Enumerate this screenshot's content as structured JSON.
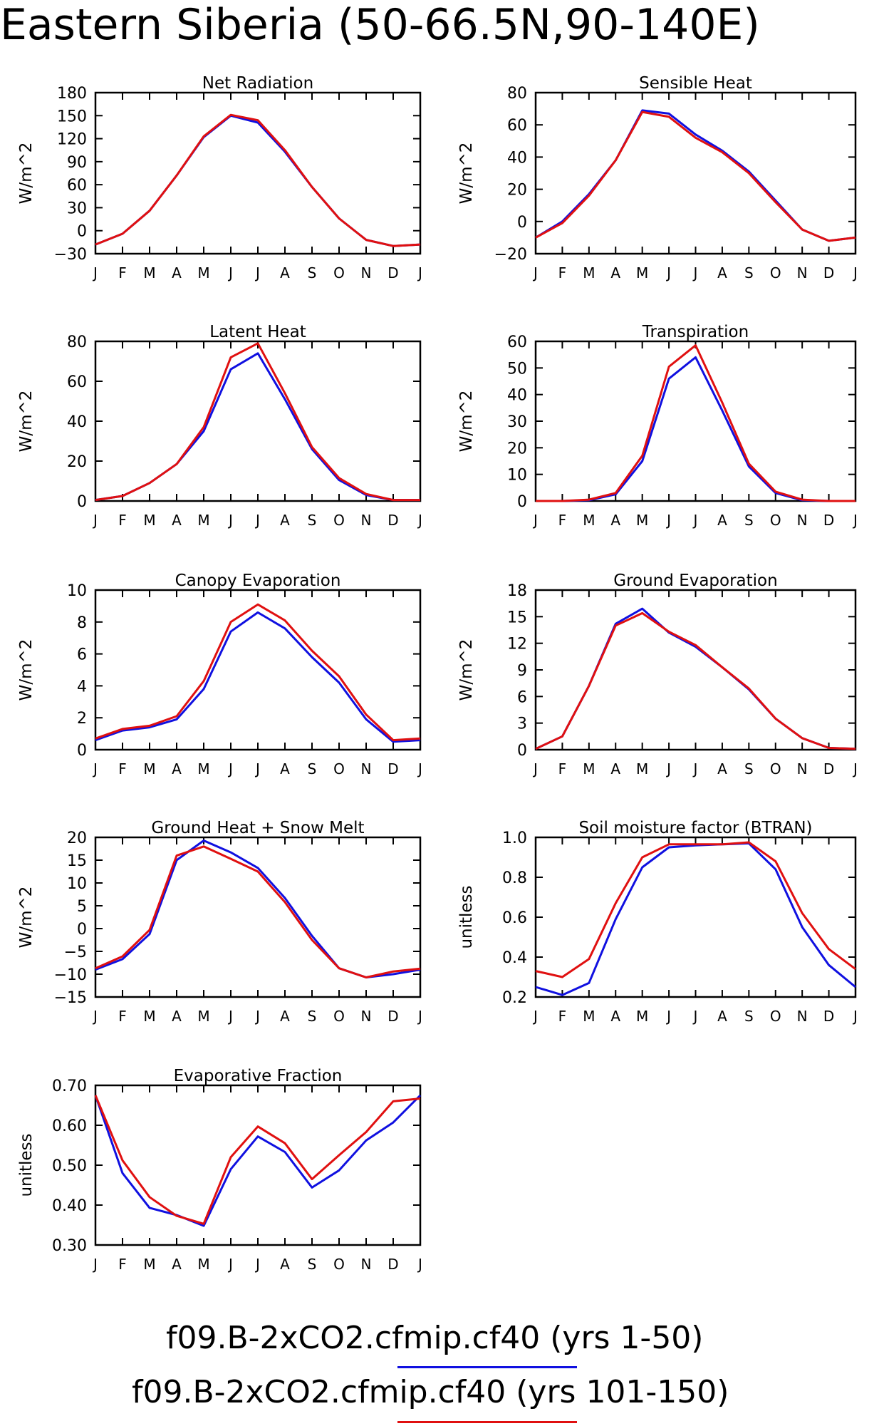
{
  "title": "Eastern Siberia (50-66.5N,90-140E)",
  "months": [
    "J",
    "F",
    "M",
    "A",
    "M",
    "J",
    "J",
    "A",
    "S",
    "O",
    "N",
    "D",
    "J"
  ],
  "colors": {
    "case1": "#1010e0",
    "case2": "#e01010",
    "axis": "#000000"
  },
  "legend": [
    {
      "label": "f09.B-2xCO2.cfmip.cf40 (yrs 1-50)",
      "color": "#1010e0"
    },
    {
      "label": "f09.B-2xCO2.cfmip.cf40 (yrs 101-150)",
      "color": "#e01010"
    }
  ],
  "chart_data": [
    {
      "type": "line",
      "title": "Net Radiation",
      "ylabel": "W/m^2",
      "ylim": [
        -30,
        180
      ],
      "yticks": [
        "-30",
        "0",
        "30",
        "60",
        "90",
        "120",
        "150",
        "180"
      ],
      "series": [
        {
          "values": [
            -18,
            -4,
            26,
            72,
            122,
            150,
            141,
            103,
            57,
            16,
            -12,
            -20,
            -18
          ]
        },
        {
          "values": [
            -18,
            -4,
            26,
            72,
            123,
            151,
            144,
            105,
            57,
            16,
            -12,
            -20,
            -18
          ]
        }
      ]
    },
    {
      "type": "line",
      "title": "Sensible Heat",
      "ylabel": "W/m^2",
      "ylim": [
        -20,
        80
      ],
      "yticks": [
        "-20",
        "0",
        "20",
        "40",
        "60",
        "80"
      ],
      "series": [
        {
          "values": [
            -10,
            0,
            17,
            38,
            69,
            67,
            54,
            44,
            31,
            13,
            -5,
            -12,
            -10
          ]
        },
        {
          "values": [
            -10,
            -1,
            16,
            38,
            68,
            65,
            52,
            43,
            30,
            12,
            -5,
            -12,
            -10
          ]
        }
      ]
    },
    {
      "type": "line",
      "title": "Latent Heat",
      "ylabel": "W/m^2",
      "ylim": [
        0,
        80
      ],
      "yticks": [
        "0",
        "20",
        "40",
        "60",
        "80"
      ],
      "series": [
        {
          "values": [
            0.5,
            2.5,
            9,
            18.5,
            35,
            66,
            74,
            51,
            26,
            10.5,
            3,
            0.5,
            0.5
          ]
        },
        {
          "values": [
            0.5,
            2.5,
            9,
            18.5,
            37,
            72,
            79,
            54,
            27,
            11.5,
            3.5,
            0.5,
            0.5
          ]
        }
      ]
    },
    {
      "type": "line",
      "title": "Transpiration",
      "ylabel": "W/m^2",
      "ylim": [
        0,
        60
      ],
      "yticks": [
        "0",
        "10",
        "20",
        "30",
        "40",
        "50",
        "60"
      ],
      "series": [
        {
          "values": [
            0,
            0,
            0.3,
            2.5,
            15,
            46,
            54,
            34,
            13,
            3,
            0.3,
            0,
            0
          ]
        },
        {
          "values": [
            0,
            0,
            0.5,
            3,
            17,
            50.5,
            58.5,
            37,
            14,
            3.5,
            0.5,
            0,
            0
          ]
        }
      ]
    },
    {
      "type": "line",
      "title": "Canopy Evaporation",
      "ylabel": "W/m^2",
      "ylim": [
        0,
        10
      ],
      "yticks": [
        "0",
        "2",
        "4",
        "6",
        "8",
        "10"
      ],
      "series": [
        {
          "values": [
            0.6,
            1.2,
            1.4,
            1.9,
            3.8,
            7.4,
            8.6,
            7.6,
            5.8,
            4.2,
            1.9,
            0.5,
            0.6
          ]
        },
        {
          "values": [
            0.7,
            1.3,
            1.5,
            2.1,
            4.3,
            8.0,
            9.1,
            8.1,
            6.2,
            4.6,
            2.2,
            0.6,
            0.7
          ]
        }
      ]
    },
    {
      "type": "line",
      "title": "Ground Evaporation",
      "ylabel": "W/m^2",
      "ylim": [
        0,
        18
      ],
      "yticks": [
        "0",
        "3",
        "6",
        "9",
        "12",
        "15",
        "18"
      ],
      "series": [
        {
          "values": [
            0.1,
            1.5,
            7.2,
            14.2,
            15.9,
            13.2,
            11.6,
            9.3,
            6.8,
            3.5,
            1.3,
            0.2,
            0.1
          ]
        },
        {
          "values": [
            0.1,
            1.5,
            7.2,
            14.0,
            15.4,
            13.3,
            11.8,
            9.3,
            6.9,
            3.5,
            1.3,
            0.2,
            0.1
          ]
        }
      ]
    },
    {
      "type": "line",
      "title": "Ground Heat + Snow Melt",
      "ylabel": "W/m^2",
      "ylim": [
        -15,
        20
      ],
      "yticks": [
        "-15",
        "-10",
        "-5",
        "0",
        "5",
        "10",
        "15",
        "20"
      ],
      "series": [
        {
          "values": [
            -9,
            -6.7,
            -1.2,
            15,
            19.3,
            16.7,
            13.3,
            6.7,
            -1.6,
            -8.7,
            -10.7,
            -10,
            -9
          ]
        },
        {
          "values": [
            -8.7,
            -6.1,
            -0.3,
            16,
            18,
            15.3,
            12.5,
            5.8,
            -2.5,
            -8.7,
            -10.7,
            -9.4,
            -8.8
          ]
        }
      ]
    },
    {
      "type": "line",
      "title": "Soil moisture factor (BTRAN)",
      "ylabel": "unitless",
      "ylim": [
        0.2,
        1.0
      ],
      "yticks": [
        "0.2",
        "0.4",
        "0.6",
        "0.8",
        "1.0"
      ],
      "series": [
        {
          "values": [
            0.25,
            0.21,
            0.27,
            0.59,
            0.85,
            0.95,
            0.96,
            0.965,
            0.97,
            0.84,
            0.55,
            0.36,
            0.25
          ]
        },
        {
          "values": [
            0.33,
            0.3,
            0.39,
            0.67,
            0.9,
            0.965,
            0.965,
            0.965,
            0.975,
            0.88,
            0.62,
            0.44,
            0.34
          ]
        }
      ]
    },
    {
      "type": "line",
      "title": "Evaporative Fraction",
      "ylabel": "unitless",
      "ylim": [
        0.3,
        0.7
      ],
      "yticks": [
        "0.30",
        "0.40",
        "0.50",
        "0.60",
        "0.70"
      ],
      "series": [
        {
          "values": [
            0.675,
            0.48,
            0.393,
            0.375,
            0.348,
            0.49,
            0.572,
            0.533,
            0.444,
            0.487,
            0.562,
            0.607,
            0.675
          ]
        },
        {
          "values": [
            0.675,
            0.512,
            0.42,
            0.373,
            0.353,
            0.52,
            0.597,
            0.555,
            0.465,
            0.525,
            0.583,
            0.66,
            0.667
          ]
        }
      ]
    }
  ]
}
